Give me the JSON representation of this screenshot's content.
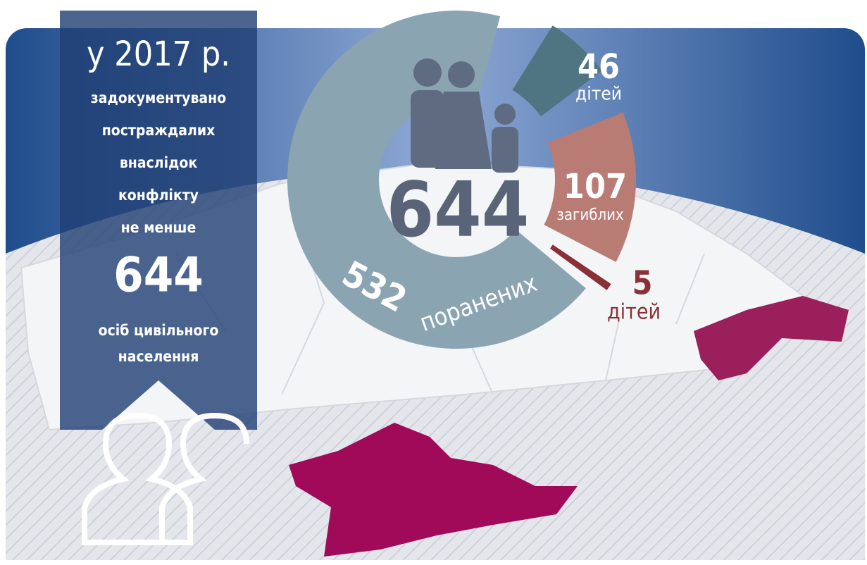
{
  "banner": {
    "year": "у 2017 р.",
    "lines": [
      "задокументувано",
      "постраждалих",
      "внаслідок",
      "конфлікту",
      "не менше"
    ],
    "number": 644,
    "footer": [
      "осіб цивільного",
      "населення"
    ]
  },
  "chart_data": {
    "type": "donut",
    "total": 644,
    "categories": [
      "поранених",
      "загиблих",
      "дітей",
      "дітей"
    ],
    "values": [
      532,
      107,
      46,
      5
    ],
    "colors": [
      "#8ba4b2",
      "#b97c75",
      "#4e7581",
      "#8a3137"
    ]
  }
}
